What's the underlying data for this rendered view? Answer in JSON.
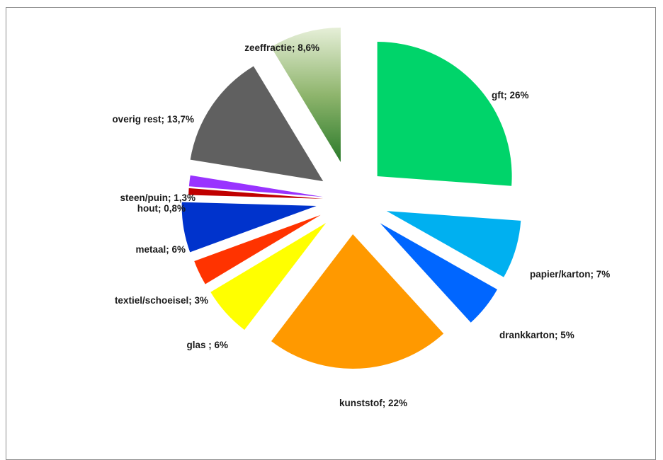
{
  "chart_data": {
    "type": "pie",
    "exploded": true,
    "categories": [
      "gft",
      "papier/karton",
      "drankkarton",
      "kunststof",
      "glas",
      "textiel/schoeisel",
      "metaal",
      "hout",
      "steen/puin",
      "overig rest",
      "zeeffractie"
    ],
    "values": [
      26,
      7,
      5,
      22,
      6,
      3,
      6,
      0.8,
      1.3,
      13.7,
      8.6
    ],
    "labels": [
      "gft; 26%",
      "papier/karton; 7%",
      "drankkarton; 5%",
      "kunststof; 22%",
      "glas ; 6%",
      "textiel/schoeisel; 3%",
      "metaal; 6%",
      "hout; 0,8%",
      "steen/puin; 1,3%",
      "overig rest; 13,7%",
      "zeeffractie; 8,6%"
    ],
    "colors": [
      "#00d46a",
      "#00b0f0",
      "#0066ff",
      "#ff9900",
      "#ffff00",
      "#ff3300",
      "#0033cc",
      "#c00000",
      "#9933ff",
      "#606060",
      "gradient:#2a7a2a-#e6efd8"
    ],
    "legend": "none"
  }
}
